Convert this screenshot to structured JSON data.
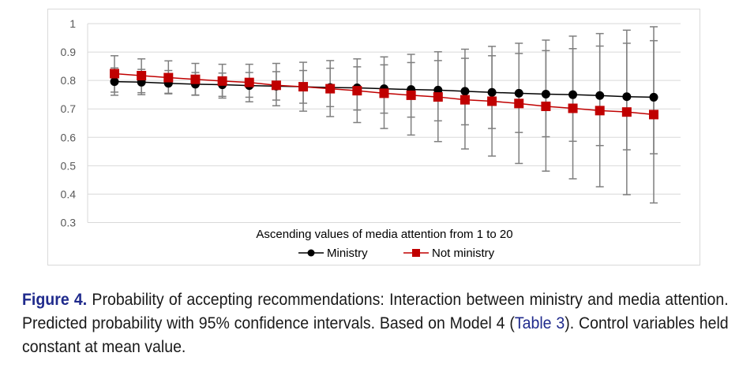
{
  "chart_data": {
    "type": "line",
    "title": "",
    "xlabel": "Ascending values of media attention from 1 to 20",
    "ylabel": "",
    "ylim": [
      0.3,
      1.0
    ],
    "yticks": [
      "0.3",
      "0.4",
      "0.5",
      "0.6",
      "0.7",
      "0.8",
      "0.9",
      "1"
    ],
    "ytick_values": [
      0.3,
      0.4,
      0.5,
      0.6,
      0.7,
      0.8,
      0.9,
      1.0
    ],
    "grid": true,
    "legend_position": "bottom",
    "n_points": 21,
    "series": [
      {
        "name": "Ministry",
        "color": "#000000",
        "marker": "circle",
        "values": [
          0.796,
          0.794,
          0.79,
          0.787,
          0.785,
          0.782,
          0.78,
          0.778,
          0.775,
          0.774,
          0.771,
          0.768,
          0.766,
          0.762,
          0.758,
          0.755,
          0.752,
          0.75,
          0.747,
          0.743,
          0.741
        ],
        "ci_lower": [
          0.759,
          0.757,
          0.755,
          0.749,
          0.744,
          0.741,
          0.731,
          0.72,
          0.708,
          0.696,
          0.685,
          0.671,
          0.658,
          0.644,
          0.631,
          0.617,
          0.602,
          0.586,
          0.571,
          0.556,
          0.542
        ],
        "ci_upper": [
          0.844,
          0.839,
          0.835,
          0.828,
          0.826,
          0.828,
          0.831,
          0.835,
          0.843,
          0.848,
          0.855,
          0.863,
          0.87,
          0.878,
          0.887,
          0.895,
          0.905,
          0.912,
          0.921,
          0.931,
          0.94
        ]
      },
      {
        "name": "Not ministry",
        "color": "#c00000",
        "marker": "square",
        "values": [
          0.824,
          0.817,
          0.81,
          0.804,
          0.798,
          0.793,
          0.783,
          0.778,
          0.771,
          0.764,
          0.755,
          0.748,
          0.742,
          0.732,
          0.727,
          0.719,
          0.709,
          0.702,
          0.694,
          0.689,
          0.68
        ],
        "ci_lower": [
          0.748,
          0.75,
          0.753,
          0.748,
          0.738,
          0.725,
          0.711,
          0.692,
          0.673,
          0.652,
          0.631,
          0.608,
          0.585,
          0.559,
          0.534,
          0.508,
          0.481,
          0.454,
          0.426,
          0.398,
          0.369
        ],
        "ci_upper": [
          0.887,
          0.876,
          0.869,
          0.86,
          0.857,
          0.857,
          0.86,
          0.864,
          0.87,
          0.876,
          0.883,
          0.892,
          0.901,
          0.91,
          0.92,
          0.931,
          0.942,
          0.956,
          0.965,
          0.977,
          0.989
        ]
      }
    ],
    "errorbar_color": "#7f7f7f",
    "gridline_color": "#d9d9d9"
  },
  "caption": {
    "figure_label": "Figure 4.",
    "text_part1": " Probability of accepting recommendations: Interaction between ministry and media attention. Predicted probability with 95% confidence intervals. Based on Model 4 (",
    "table_ref": "Table 3",
    "text_part2": "). Control variables held constant at mean value."
  }
}
